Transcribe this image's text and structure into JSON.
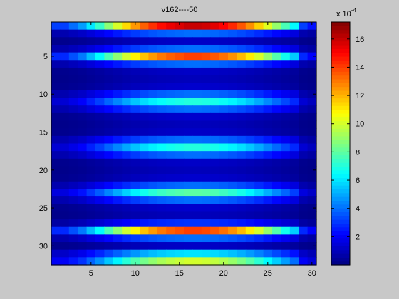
{
  "chart_data": {
    "type": "heatmap",
    "title": "v162----50",
    "xlabel": "",
    "ylabel": "",
    "cols": 30,
    "rows": 32,
    "x_ticks": [
      5,
      10,
      15,
      20,
      25,
      30
    ],
    "y_ticks": [
      5,
      10,
      15,
      20,
      25,
      30
    ],
    "colorbar": {
      "min": 0.0,
      "max": 17.2,
      "ticks": [
        2,
        4,
        6,
        8,
        10,
        12,
        14,
        16
      ],
      "scale_base": "x 10",
      "scale_exp": "-4",
      "colormap": "jet"
    },
    "row_peaks": [
      16.0,
      4.0,
      1.2,
      4.0,
      14.0,
      4.0,
      1.2,
      1.0,
      1.3,
      4.0,
      7.0,
      4.0,
      1.3,
      1.0,
      1.2,
      4.0,
      7.0,
      4.0,
      1.2,
      1.0,
      1.3,
      4.0,
      8.0,
      4.0,
      1.3,
      1.0,
      3.0,
      14.0,
      4.0,
      1.2,
      6.0,
      10.0
    ],
    "col_profile": [
      0.2,
      0.2,
      0.25,
      0.3,
      0.38,
      0.46,
      0.55,
      0.63,
      0.71,
      0.78,
      0.84,
      0.89,
      0.93,
      0.96,
      0.98,
      1.0,
      1.0,
      0.99,
      0.97,
      0.94,
      0.9,
      0.85,
      0.79,
      0.72,
      0.64,
      0.56,
      0.48,
      0.4,
      0.2,
      0.15
    ]
  }
}
